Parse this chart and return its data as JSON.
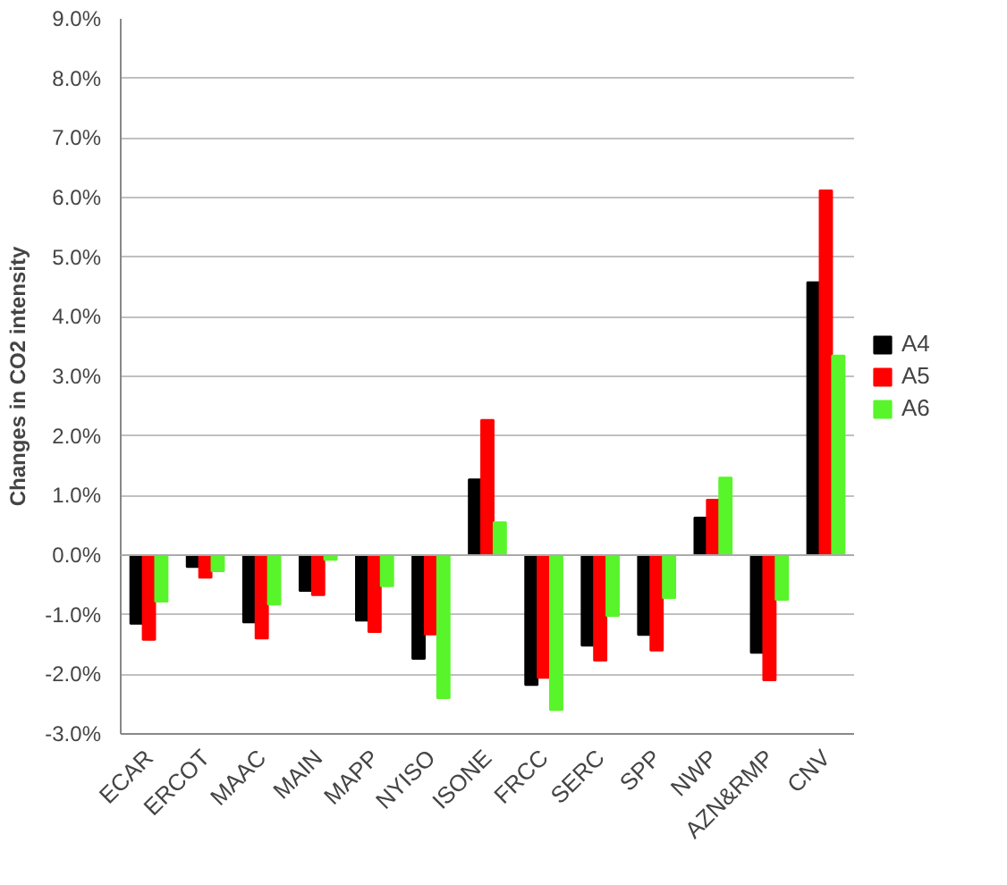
{
  "chart_data": {
    "type": "bar",
    "ylabel": "Changes in CO2 intensity",
    "categories": [
      "ECAR",
      "ERCOT",
      "MAAC",
      "MAIN",
      "MAPP",
      "NYISO",
      "ISONE",
      "FRCC",
      "SERC",
      "SPP",
      "NWP",
      "AZN&RMP",
      "CNV"
    ],
    "series": [
      {
        "name": "A4",
        "color": "#000000",
        "values": [
          -1.15,
          -0.2,
          -1.13,
          -0.6,
          -1.1,
          -1.74,
          1.27,
          -2.18,
          -1.52,
          -1.34,
          0.63,
          -1.64,
          4.58
        ]
      },
      {
        "name": "A5",
        "color": "#ff0000",
        "values": [
          -1.42,
          -0.38,
          -1.4,
          -0.67,
          -1.29,
          -1.33,
          2.27,
          -2.06,
          -1.77,
          -1.6,
          0.93,
          -2.1,
          6.12
        ]
      },
      {
        "name": "A6",
        "color": "#58f52b",
        "values": [
          -0.78,
          -0.27,
          -0.83,
          -0.08,
          -0.52,
          -2.4,
          0.55,
          -2.6,
          -1.02,
          -0.72,
          1.3,
          -0.75,
          3.35
        ]
      }
    ],
    "ylim": [
      -3,
      9
    ],
    "yticks": [
      {
        "value": -3,
        "label": "-3.0%"
      },
      {
        "value": -2,
        "label": "-2.0%"
      },
      {
        "value": -1,
        "label": "-1.0%"
      },
      {
        "value": 0,
        "label": "0.0%"
      },
      {
        "value": 1,
        "label": "1.0%"
      },
      {
        "value": 2,
        "label": "2.0%"
      },
      {
        "value": 3,
        "label": "3.0%"
      },
      {
        "value": 4,
        "label": "4.0%"
      },
      {
        "value": 5,
        "label": "5.0%"
      },
      {
        "value": 6,
        "label": "6.0%"
      },
      {
        "value": 7,
        "label": "7.0%"
      },
      {
        "value": 8,
        "label": "8.0%"
      },
      {
        "value": 9,
        "label": "9.0%"
      }
    ],
    "grid": "y",
    "legend": "right"
  }
}
